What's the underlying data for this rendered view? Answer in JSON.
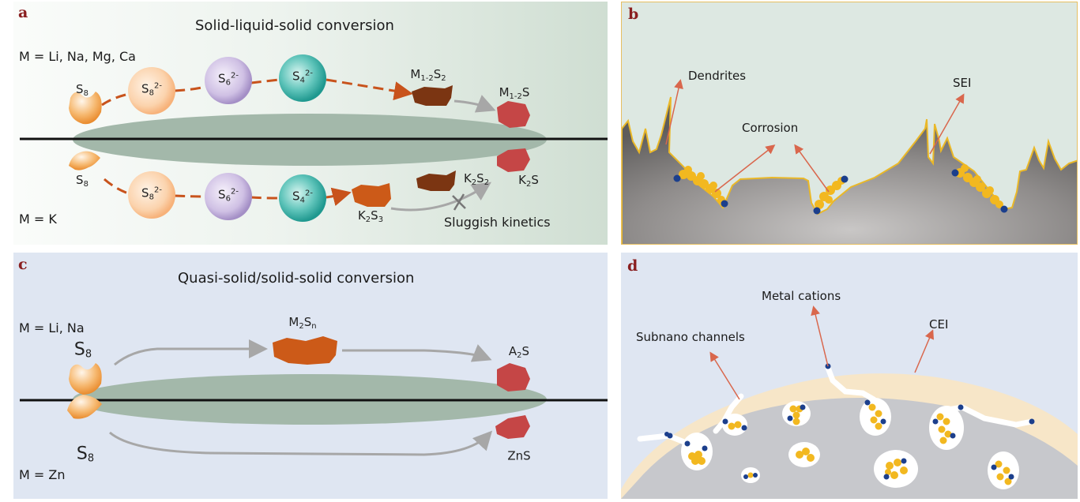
{
  "panel_a": {
    "label": "a",
    "title": "Solid-liquid-solid conversion",
    "metals_top": "M = Li, Na, Mg, Ca",
    "metals_bottom": "M = K",
    "s8": "S",
    "s8_sub": "8",
    "sluggish": "Sluggish kinetics",
    "top_species": [
      {
        "base": "S",
        "sub": "8",
        "sup": "2-"
      },
      {
        "base": "S",
        "sub": "6",
        "sup": "2-"
      },
      {
        "base": "S",
        "sub": "4",
        "sup": "2-"
      }
    ],
    "top_m12s2": {
      "base": "M",
      "sub1": "1-2",
      "mid": "S",
      "sub2": "2"
    },
    "top_m12s": {
      "base": "M",
      "sub1": "1-2",
      "mid": "S"
    },
    "bottom_species": [
      {
        "base": "S",
        "sub": "8",
        "sup": "2-"
      },
      {
        "base": "S",
        "sub": "6",
        "sup": "2-"
      },
      {
        "base": "S",
        "sub": "4",
        "sup": "2-"
      }
    ],
    "k2s3": {
      "base": "K",
      "sub1": "2",
      "mid": "S",
      "sub2": "3"
    },
    "k2s2": {
      "base": "K",
      "sub1": "2",
      "mid": "S",
      "sub2": "2"
    },
    "k2s": {
      "base": "K",
      "sub1": "2",
      "mid": "S"
    }
  },
  "panel_b": {
    "label": "b",
    "dendrites": "Dendrites",
    "corrosion": "Corrosion",
    "sei": "SEI"
  },
  "panel_c": {
    "label": "c",
    "title": "Quasi-solid/solid-solid conversion",
    "metals_top": "M = Li, Na",
    "metals_bottom": "M = Zn",
    "s8": "S",
    "s8_sub": "8",
    "m2sn": {
      "base": "M",
      "sub1": "2",
      "mid": "S",
      "sub2": "n"
    },
    "a2s": {
      "base": "A",
      "sub1": "2",
      "mid": "S"
    },
    "zns": "ZnS"
  },
  "panel_d": {
    "label": "d",
    "metal_cations": "Metal cations",
    "subnano": "Subnano channels",
    "cei": "CEI"
  },
  "colors": {
    "arrow_orange": "#c8531c",
    "arrow_grey": "#a7a7a7",
    "annot": "#d9674d",
    "polysulfide_s8": "#f6b77c",
    "polysulfide_s6": "#a48fc6",
    "polysulfide_s4": "#27a59d",
    "sulfur": "#f1a04d",
    "intermediate_brown": "#7b3512",
    "final_red": "#c54646",
    "k2s3_orange": "#cc5a18",
    "electrode": "#9fb4a6",
    "yellow": "#f2b820",
    "navy": "#1c3f8c"
  }
}
